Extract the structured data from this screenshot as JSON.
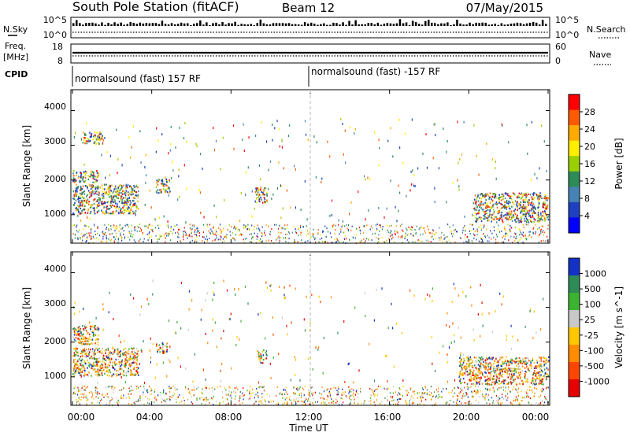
{
  "header": {
    "title": "South Pole Station (fitACF)",
    "beam": "Beam 12",
    "date": "07/May/2015"
  },
  "sky_search": {
    "left_label": "N.Sky",
    "right_label": "N.Search",
    "left_ticks": [
      "10^5",
      "10^0"
    ],
    "right_ticks": [
      "10^5",
      "10^0"
    ]
  },
  "freq_nave": {
    "left_label": "Freq.",
    "left_unit": "[MHz]",
    "right_label": "Nave",
    "left_ticks": [
      "18",
      "8"
    ],
    "right_ticks": [
      "60",
      "0"
    ]
  },
  "cpid": {
    "label": "CPID",
    "segments": [
      "normalsound (fast) 157 RF",
      "normalsound (fast) -157 RF"
    ]
  },
  "axes": {
    "ylabel": "Slant Range [km]",
    "xlabel": "Time UT",
    "yticks": [
      "4000",
      "3000",
      "2000",
      "1000"
    ],
    "xticks": [
      "00:00",
      "04:00",
      "08:00",
      "12:00",
      "16:00",
      "20:00",
      "00:00"
    ]
  },
  "chart_data": [
    {
      "type": "heatmap",
      "title": "Power",
      "xlabel": "Time UT",
      "ylabel": "Slant Range [km]",
      "xlim": [
        0,
        24
      ],
      "ylim": [
        180,
        4600
      ],
      "colorbar": {
        "label": "Power [dB]",
        "tick_labels": [
          "28",
          "24",
          "20",
          "16",
          "12",
          "8",
          "4"
        ],
        "colors": [
          "#ff0000",
          "#ff5a00",
          "#ffaa00",
          "#ffee00",
          "#9ad000",
          "#2e8b57",
          "#4682b4",
          "#1e3fbf",
          "#0000ff"
        ]
      },
      "regions": [
        {
          "t": [
            0.0,
            1.3
          ],
          "r": [
            1950,
            2300
          ],
          "v": "12-20"
        },
        {
          "t": [
            0.0,
            3.3
          ],
          "r": [
            1050,
            1900
          ],
          "v": "4-16"
        },
        {
          "t": [
            0.5,
            1.6
          ],
          "r": [
            3050,
            3400
          ],
          "v": "4-8"
        },
        {
          "t": [
            4.2,
            4.9
          ],
          "r": [
            1650,
            2050
          ],
          "v": "4-12"
        },
        {
          "t": [
            9.2,
            9.8
          ],
          "r": [
            1350,
            1800
          ],
          "v": "4-8"
        },
        {
          "t": [
            20.2,
            24.0
          ],
          "r": [
            800,
            1650
          ],
          "v": "4-28"
        }
      ]
    },
    {
      "type": "heatmap",
      "title": "Velocity",
      "xlabel": "Time UT",
      "ylabel": "Slant Range [km]",
      "xlim": [
        0,
        24
      ],
      "ylim": [
        180,
        4600
      ],
      "colorbar": {
        "label": "Velocity [m s^-1]",
        "tick_labels": [
          "1000",
          "500",
          "100",
          "25",
          "-25",
          "-100",
          "-500",
          "-1000"
        ],
        "colors": [
          "#1432c8",
          "#2e8b57",
          "#3cb432",
          "#c8c8c8",
          "#ffc800",
          "#ff8c00",
          "#ff4600",
          "#e60000"
        ]
      },
      "regions": [
        {
          "t": [
            0.0,
            1.3
          ],
          "r": [
            1950,
            2500
          ],
          "v": "-100 to -500"
        },
        {
          "t": [
            0.0,
            3.3
          ],
          "r": [
            1050,
            1850
          ],
          "v": "-100 to -500"
        },
        {
          "t": [
            4.2,
            4.9
          ],
          "r": [
            1700,
            2000
          ],
          "v": "-100"
        },
        {
          "t": [
            9.3,
            9.8
          ],
          "r": [
            1400,
            1800
          ],
          "v": "100 to 500"
        },
        {
          "t": [
            19.5,
            24.0
          ],
          "r": [
            800,
            1600
          ],
          "v": "-100 to -500"
        }
      ]
    }
  ]
}
